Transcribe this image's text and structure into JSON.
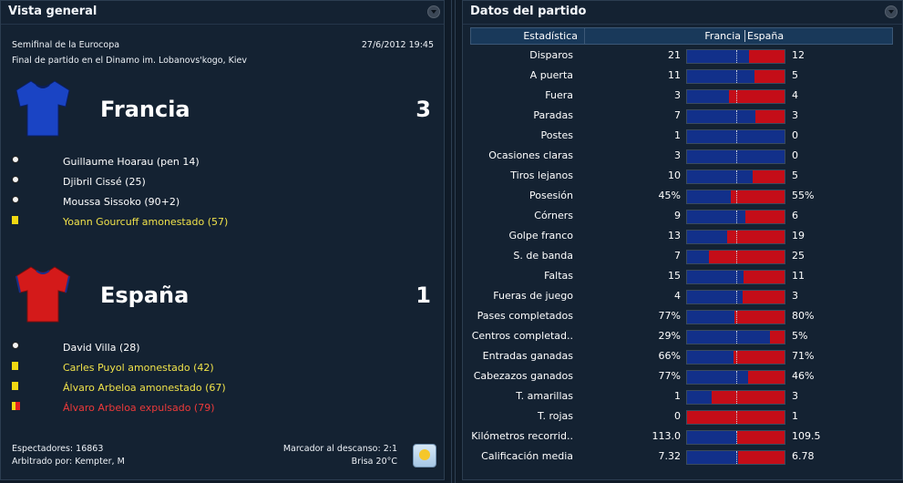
{
  "left_panel": {
    "title": "Vista general",
    "competition": "Semifinal de la Eurocopa",
    "datetime": "27/6/2012 19:45",
    "venue": "Final de partido en el Dinamo im. Lobanovs'kogo, Kiev",
    "teams": [
      {
        "name": "Francia",
        "score": "3",
        "shirt_color": "#1a44c4",
        "events": [
          {
            "type": "goal",
            "icon": "ball-icon",
            "text": "Guillaume Hoarau (pen 14)"
          },
          {
            "type": "goal",
            "icon": "ball-icon",
            "text": "Djibril Cissé (25)"
          },
          {
            "type": "goal",
            "icon": "ball-icon",
            "text": "Moussa Sissoko (90+2)"
          },
          {
            "type": "yellow",
            "icon": "yellow-card-icon",
            "text": "Yoann Gourcuff amonestado (57)"
          }
        ]
      },
      {
        "name": "España",
        "score": "1",
        "shirt_color": "#d41a1a",
        "events": [
          {
            "type": "goal",
            "icon": "ball-icon",
            "text": "David Villa (28)"
          },
          {
            "type": "yellow",
            "icon": "yellow-card-icon",
            "text": "Carles Puyol amonestado (42)"
          },
          {
            "type": "yellow",
            "icon": "yellow-card-icon",
            "text": "Álvaro Arbeloa amonestado (67)"
          },
          {
            "type": "red",
            "icon": "second-yellow-red-card-icon",
            "text": "Álvaro Arbeloa expulsado (79)"
          }
        ]
      }
    ],
    "footer": {
      "spectators": "Espectadores: 16863",
      "referee": "Arbitrado por: Kempter, M",
      "halftime": "Marcador al descanso: 2:1",
      "weather": "Brisa 20°C",
      "weather_icon": "sun-icon"
    }
  },
  "right_panel": {
    "title": "Datos del partido",
    "header": {
      "stat": "Estadística",
      "home": "Francia",
      "away": "España"
    },
    "colors": {
      "home": "#12308a",
      "away": "#c40d18"
    },
    "stats": [
      {
        "label": "Disparos",
        "home": "21",
        "away": "12",
        "home_share": 0.64
      },
      {
        "label": "A puerta",
        "home": "11",
        "away": "5",
        "home_share": 0.69
      },
      {
        "label": "Fuera",
        "home": "3",
        "away": "4",
        "home_share": 0.43
      },
      {
        "label": "Paradas",
        "home": "7",
        "away": "3",
        "home_share": 0.7
      },
      {
        "label": "Postes",
        "home": "1",
        "away": "0",
        "home_share": 1.0
      },
      {
        "label": "Ocasiones claras",
        "home": "3",
        "away": "0",
        "home_share": 1.0
      },
      {
        "label": "Tiros lejanos",
        "home": "10",
        "away": "5",
        "home_share": 0.67
      },
      {
        "label": "Posesión",
        "home": "45%",
        "away": "55%",
        "home_share": 0.45
      },
      {
        "label": "Córners",
        "home": "9",
        "away": "6",
        "home_share": 0.6
      },
      {
        "label": "Golpe franco",
        "home": "13",
        "away": "19",
        "home_share": 0.41
      },
      {
        "label": "S. de banda",
        "home": "7",
        "away": "25",
        "home_share": 0.22
      },
      {
        "label": "Faltas",
        "home": "15",
        "away": "11",
        "home_share": 0.58
      },
      {
        "label": "Fueras de juego",
        "home": "4",
        "away": "3",
        "home_share": 0.57
      },
      {
        "label": "Pases completados",
        "home": "77%",
        "away": "80%",
        "home_share": 0.49
      },
      {
        "label": "Centros completad..",
        "home": "29%",
        "away": "5%",
        "home_share": 0.85
      },
      {
        "label": "Entradas ganadas",
        "home": "66%",
        "away": "71%",
        "home_share": 0.48
      },
      {
        "label": "Cabezazos ganados",
        "home": "77%",
        "away": "46%",
        "home_share": 0.63
      },
      {
        "label": "T. amarillas",
        "home": "1",
        "away": "3",
        "home_share": 0.25
      },
      {
        "label": "T. rojas",
        "home": "0",
        "away": "1",
        "home_share": 0.0
      },
      {
        "label": "Kilómetros recorrid..",
        "home": "113.0",
        "away": "109.5",
        "home_share": 0.51
      },
      {
        "label": "Calificación media",
        "home": "7.32",
        "away": "6.78",
        "home_share": 0.52
      }
    ]
  }
}
